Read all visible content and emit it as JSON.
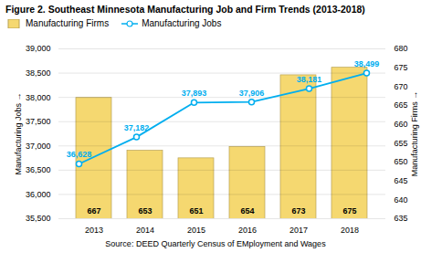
{
  "chart_data": {
    "type": "bar",
    "title": "Figure 2. Southeast Minnesota Manufacturing Job and Firm Trends (2013-2018)",
    "source": "Source: DEED Quarterly Census of EMployment and Wages",
    "categories": [
      "2013",
      "2014",
      "2015",
      "2016",
      "2017",
      "2018"
    ],
    "series": [
      {
        "name": "Manufacturing Firms",
        "type": "bar",
        "axis": "y2",
        "color": "#F5D870",
        "values": [
          667,
          653,
          651,
          654,
          673,
          675
        ],
        "data_labels": true
      },
      {
        "name": "Manufacturing Jobs",
        "type": "line",
        "color": "#00AEEF",
        "marker": "circle",
        "values": [
          36628,
          37182,
          37893,
          37906,
          38181,
          38499
        ],
        "data_labels": true,
        "value_labels": [
          "36,628",
          "37,182",
          "37,893",
          "37,906",
          "38,181",
          "38,499"
        ]
      }
    ],
    "ylabel": "Manufacturing Jobs",
    "y2label": "Manufacturing Firms",
    "ylim": [
      35500,
      39000
    ],
    "yticks": [
      {
        "value": 35500,
        "label": "35,500"
      },
      {
        "value": 36000,
        "label": "36,000"
      },
      {
        "value": 36500,
        "label": "36,500"
      },
      {
        "value": 37000,
        "label": "37,000"
      },
      {
        "value": 37500,
        "label": "37,500"
      },
      {
        "value": 38000,
        "label": "38,000"
      },
      {
        "value": 38500,
        "label": "38,500"
      },
      {
        "value": 39000,
        "label": "39,000"
      }
    ],
    "y2lim": [
      635,
      680
    ],
    "y2ticks": [
      635,
      640,
      645,
      650,
      655,
      660,
      665,
      670,
      675,
      680
    ],
    "grid": true,
    "legend": "upper left"
  }
}
